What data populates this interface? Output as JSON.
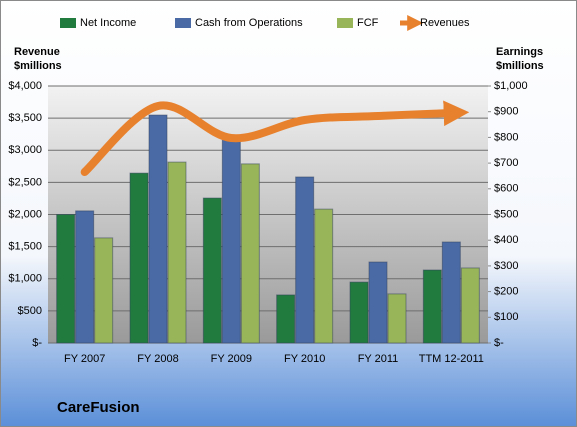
{
  "chart_data": {
    "type": "bar",
    "title": "CareFusion",
    "ylabel": [
      "Revenue",
      "$millions"
    ],
    "y2label": [
      "Earnings",
      "$millions"
    ],
    "categories": [
      "FY 2007",
      "FY 2008",
      "FY 2009",
      "FY 2010",
      "FY 2011",
      "TTM 12-2011"
    ],
    "series": [
      {
        "name": "Net Income",
        "color": "#217a3e",
        "axis": "y2",
        "values": [
          500,
          661,
          564,
          187,
          237,
          284
        ]
      },
      {
        "name": "Cash from Operations",
        "color": "#4a6aa5",
        "axis": "y2",
        "values": [
          514,
          887,
          798,
          646,
          315,
          393
        ]
      },
      {
        "name": "FCF",
        "color": "#98b55a",
        "axis": "y2",
        "values": [
          409,
          704,
          697,
          521,
          191,
          292
        ]
      },
      {
        "name": "Revenues",
        "color": "#e8812e",
        "type": "line",
        "values": [
          2661,
          3689,
          3191,
          3471,
          3533,
          3580
        ]
      }
    ],
    "ylim": [
      0,
      4000
    ],
    "yticks": [
      {
        "value": 0,
        "label": "$-"
      },
      {
        "value": 500,
        "label": "$500"
      },
      {
        "value": 1000,
        "label": "$1,000"
      },
      {
        "value": 1500,
        "label": "$1,500"
      },
      {
        "value": 2000,
        "label": "$2,000"
      },
      {
        "value": 2500,
        "label": "$2,500"
      },
      {
        "value": 3000,
        "label": "$3,000"
      },
      {
        "value": 3500,
        "label": "$3,500"
      },
      {
        "value": 4000,
        "label": "$4,000"
      }
    ],
    "y2lim": [
      0,
      1000
    ],
    "y2ticks": [
      {
        "value": 0,
        "label": "$-"
      },
      {
        "value": 100,
        "label": "$100"
      },
      {
        "value": 200,
        "label": "$200"
      },
      {
        "value": 300,
        "label": "$300"
      },
      {
        "value": 400,
        "label": "$400"
      },
      {
        "value": 500,
        "label": "$500"
      },
      {
        "value": 600,
        "label": "$600"
      },
      {
        "value": 700,
        "label": "$700"
      },
      {
        "value": 800,
        "label": "$800"
      },
      {
        "value": 900,
        "label": "$900"
      },
      {
        "value": 1000,
        "label": "$1,000"
      }
    ],
    "grid": true,
    "legend": "top"
  }
}
